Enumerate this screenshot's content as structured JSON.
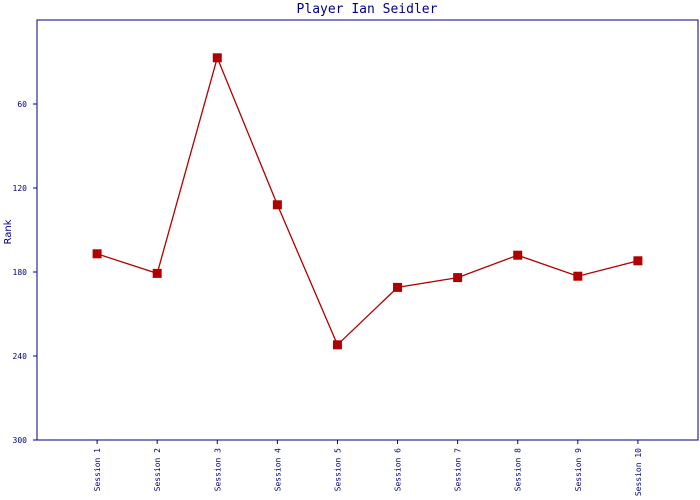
{
  "chart_data": {
    "type": "line",
    "title": "Player Ian Seidler",
    "y_label": "Rank",
    "categories": [
      "Session 1",
      "Session 2",
      "Session 3",
      "Session 4",
      "Session 5",
      "Session 6",
      "Session 7",
      "Session 8",
      "Session 9",
      "Session 10"
    ],
    "series": [
      {
        "name": "Rank",
        "color": "#b00000",
        "values": [
          167,
          181,
          27,
          132,
          232,
          191,
          184,
          168,
          183,
          172
        ]
      }
    ],
    "ylim": [
      300,
      0
    ],
    "yticks": [
      60,
      120,
      180,
      240,
      300
    ],
    "grid": false
  }
}
